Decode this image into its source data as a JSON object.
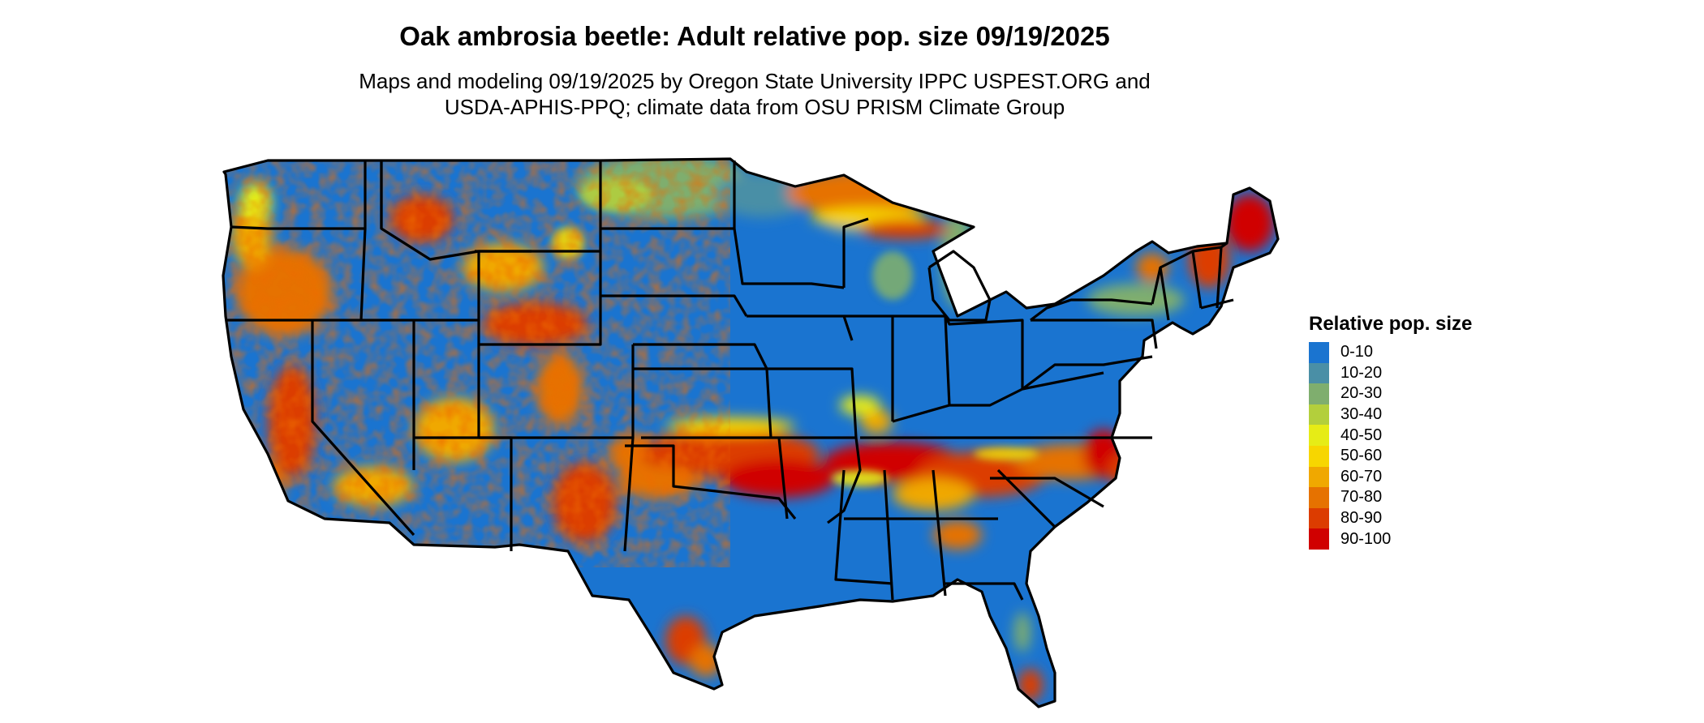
{
  "title": "Oak ambrosia beetle: Adult relative pop. size 09/19/2025",
  "subtitle": {
    "line1": "Maps and modeling 09/19/2025 by Oregon State University IPPC USPEST.ORG and",
    "line2": "USDA-APHIS-PPQ; climate data from OSU PRISM Climate Group"
  },
  "map": {
    "region": "Contiguous United States",
    "boundaries": "state outlines",
    "background_class_color": "#1a74d0",
    "hotspots": [
      {
        "area": "Appalachian / Tennessee valley band",
        "level": "80-90"
      },
      {
        "area": "Oklahoma - north Texas band",
        "level": "80-90"
      },
      {
        "area": "North Carolina / Virginia coastal plain",
        "level": "70-80"
      },
      {
        "area": "Southern Georgia / Alabama",
        "level": "60-70"
      },
      {
        "area": "South Texas",
        "level": "70-80"
      },
      {
        "area": "South Florida tip",
        "level": "80-90"
      },
      {
        "area": "Upper Michigan / Wisconsin shore",
        "level": "60-70"
      },
      {
        "area": "Northern Maine",
        "level": "90-100"
      },
      {
        "area": "Pacific Northwest and California mountains",
        "level": "80-90"
      },
      {
        "area": "Rocky Mountains",
        "level": "70-80"
      }
    ]
  },
  "legend": {
    "title": "Relative pop. size",
    "items": [
      {
        "label": "0-10",
        "color": "#1a74d0"
      },
      {
        "label": "10-20",
        "color": "#4a8fa6"
      },
      {
        "label": "20-30",
        "color": "#7fae6e"
      },
      {
        "label": "30-40",
        "color": "#b3cf3c"
      },
      {
        "label": "40-50",
        "color": "#e6ec16"
      },
      {
        "label": "50-60",
        "color": "#f7d600"
      },
      {
        "label": "60-70",
        "color": "#f0a800"
      },
      {
        "label": "70-80",
        "color": "#e67200"
      },
      {
        "label": "80-90",
        "color": "#dc3c00"
      },
      {
        "label": "90-100",
        "color": "#d00000"
      }
    ]
  }
}
